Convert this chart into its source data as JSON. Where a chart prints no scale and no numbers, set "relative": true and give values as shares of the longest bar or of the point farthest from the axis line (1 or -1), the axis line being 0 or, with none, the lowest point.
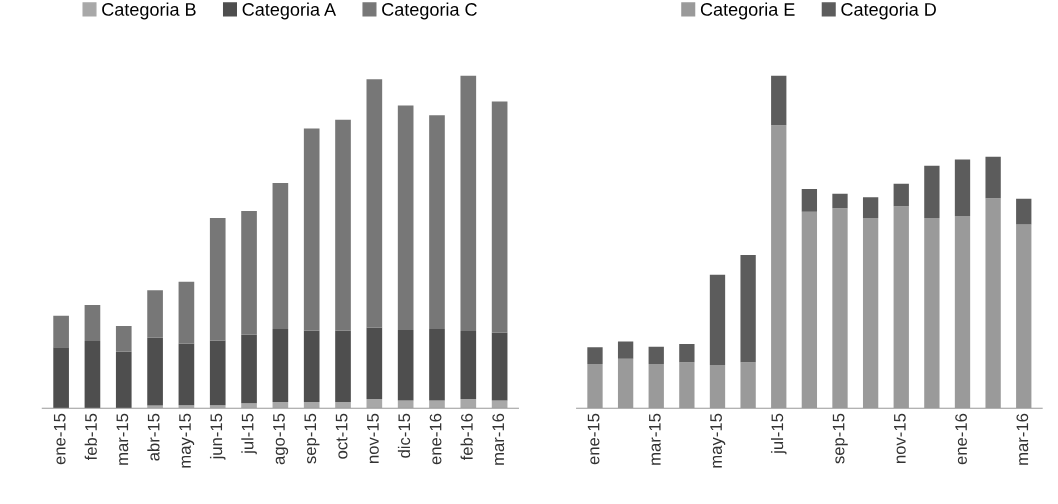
{
  "chart_data": [
    {
      "type": "bar",
      "stacked": true,
      "relative": true,
      "legend": "top",
      "grid": false,
      "categories": [
        "ene-15",
        "feb-15",
        "mar-15",
        "abr-15",
        "may-15",
        "jun-15",
        "jul-15",
        "ago-15",
        "sep-15",
        "oct-15",
        "nov-15",
        "dic-15",
        "ene-16",
        "feb-16",
        "mar-16"
      ],
      "series": [
        {
          "name": "Categoria B",
          "color": "#a8a8a8",
          "values": [
            null,
            null,
            null,
            0.008,
            0.009,
            0.009,
            0.015,
            0.019,
            0.019,
            0.019,
            0.028,
            0.023,
            0.023,
            0.028,
            0.023
          ]
        },
        {
          "name": "Categoria A",
          "color": "#4e4e4e",
          "values": [
            0.183,
            0.202,
            0.17,
            0.204,
            0.186,
            0.195,
            0.206,
            0.219,
            0.215,
            0.215,
            0.215,
            0.212,
            0.215,
            0.204,
            0.204
          ]
        },
        {
          "name": "Categoria C",
          "color": "#777777",
          "values": [
            0.095,
            0.108,
            0.077,
            0.143,
            0.185,
            0.368,
            0.372,
            0.439,
            0.607,
            0.633,
            0.746,
            0.675,
            0.643,
            0.768,
            0.695
          ]
        }
      ]
    },
    {
      "type": "bar",
      "stacked": true,
      "relative": true,
      "legend": "top",
      "grid": false,
      "categories": [
        "ene-15",
        null,
        "mar-15",
        null,
        "may-15",
        null,
        "jul-15",
        null,
        "sep-15",
        null,
        "nov-15",
        null,
        "ene-16",
        null,
        "mar-16"
      ],
      "series": [
        {
          "name": "Categoria E",
          "color": "#9a9a9a",
          "values": [
            0.133,
            0.149,
            0.133,
            0.138,
            0.13,
            0.138,
            0.851,
            0.591,
            0.601,
            0.572,
            0.607,
            0.572,
            0.578,
            0.631,
            0.552
          ]
        },
        {
          "name": "Categoria D",
          "color": "#5c5c5c",
          "values": [
            0.05,
            0.052,
            0.052,
            0.055,
            0.271,
            0.323,
            0.149,
            0.068,
            0.044,
            0.062,
            0.068,
            0.157,
            0.17,
            0.125,
            0.078
          ]
        }
      ]
    }
  ]
}
